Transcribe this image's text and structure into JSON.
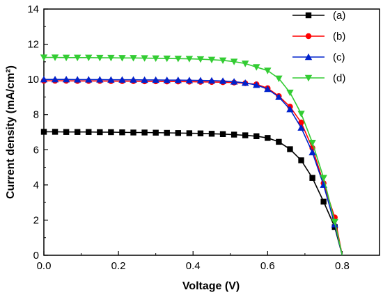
{
  "chart_data": {
    "type": "line",
    "title": "",
    "xlabel": "Voltage (V)",
    "ylabel": "Current density (mA/cm²)",
    "xlim": [
      0.0,
      0.9
    ],
    "ylim": [
      0,
      14
    ],
    "xticks": [
      "0.0",
      "0.2",
      "0.4",
      "0.6",
      "0.8"
    ],
    "xtick_values": [
      0.0,
      0.2,
      0.4,
      0.6,
      0.8
    ],
    "yticks": [
      "0",
      "2",
      "4",
      "6",
      "8",
      "10",
      "12",
      "14"
    ],
    "ytick_values": [
      0,
      2,
      4,
      6,
      8,
      10,
      12,
      14
    ],
    "grid": false,
    "legend_position": "top-right",
    "series": [
      {
        "name": "(a)",
        "color": "#000000",
        "marker": "square",
        "x": [
          0.0,
          0.03,
          0.06,
          0.09,
          0.12,
          0.15,
          0.18,
          0.21,
          0.24,
          0.27,
          0.3,
          0.33,
          0.36,
          0.39,
          0.42,
          0.45,
          0.48,
          0.51,
          0.54,
          0.57,
          0.6,
          0.63,
          0.66,
          0.69,
          0.72,
          0.75,
          0.78,
          0.8
        ],
        "y": [
          7.02,
          7.02,
          7.01,
          7.01,
          7.01,
          7.0,
          7.0,
          6.99,
          6.98,
          6.98,
          6.97,
          6.96,
          6.95,
          6.94,
          6.93,
          6.91,
          6.89,
          6.86,
          6.82,
          6.77,
          6.67,
          6.45,
          6.03,
          5.4,
          4.4,
          3.05,
          1.6,
          0.0
        ]
      },
      {
        "name": "(b)",
        "color": "#ff0000",
        "marker": "circle",
        "x": [
          0.0,
          0.03,
          0.06,
          0.09,
          0.12,
          0.15,
          0.18,
          0.21,
          0.24,
          0.27,
          0.3,
          0.33,
          0.36,
          0.39,
          0.42,
          0.45,
          0.48,
          0.51,
          0.54,
          0.57,
          0.6,
          0.63,
          0.66,
          0.69,
          0.72,
          0.75,
          0.78,
          0.8
        ],
        "y": [
          9.92,
          9.92,
          9.92,
          9.91,
          9.91,
          9.91,
          9.9,
          9.9,
          9.9,
          9.89,
          9.89,
          9.88,
          9.88,
          9.87,
          9.86,
          9.85,
          9.84,
          9.82,
          9.78,
          9.72,
          9.5,
          9.05,
          8.45,
          7.55,
          6.1,
          4.1,
          2.15,
          0.0
        ]
      },
      {
        "name": "(c)",
        "color": "#0022cc",
        "marker": "triangle-up",
        "x": [
          0.0,
          0.03,
          0.06,
          0.09,
          0.12,
          0.15,
          0.18,
          0.21,
          0.24,
          0.27,
          0.3,
          0.33,
          0.36,
          0.39,
          0.42,
          0.45,
          0.48,
          0.51,
          0.54,
          0.57,
          0.6,
          0.63,
          0.66,
          0.69,
          0.72,
          0.75,
          0.78,
          0.8
        ],
        "y": [
          10.0,
          10.0,
          10.0,
          9.99,
          9.99,
          9.99,
          9.98,
          9.98,
          9.98,
          9.97,
          9.97,
          9.96,
          9.96,
          9.95,
          9.94,
          9.93,
          9.91,
          9.87,
          9.8,
          9.68,
          9.45,
          9.0,
          8.3,
          7.25,
          5.85,
          4.0,
          1.75,
          0.0
        ]
      },
      {
        "name": "(d)",
        "color": "#33cc33",
        "marker": "triangle-down",
        "x": [
          0.0,
          0.03,
          0.06,
          0.09,
          0.12,
          0.15,
          0.18,
          0.21,
          0.24,
          0.27,
          0.3,
          0.33,
          0.36,
          0.39,
          0.42,
          0.45,
          0.48,
          0.51,
          0.54,
          0.57,
          0.6,
          0.63,
          0.66,
          0.69,
          0.72,
          0.75,
          0.78,
          0.8
        ],
        "y": [
          11.25,
          11.25,
          11.24,
          11.24,
          11.24,
          11.23,
          11.23,
          11.22,
          11.22,
          11.21,
          11.2,
          11.19,
          11.18,
          11.17,
          11.15,
          11.12,
          11.08,
          11.01,
          10.9,
          10.7,
          10.5,
          10.05,
          9.25,
          8.05,
          6.4,
          4.4,
          1.9,
          0.0
        ]
      }
    ]
  }
}
